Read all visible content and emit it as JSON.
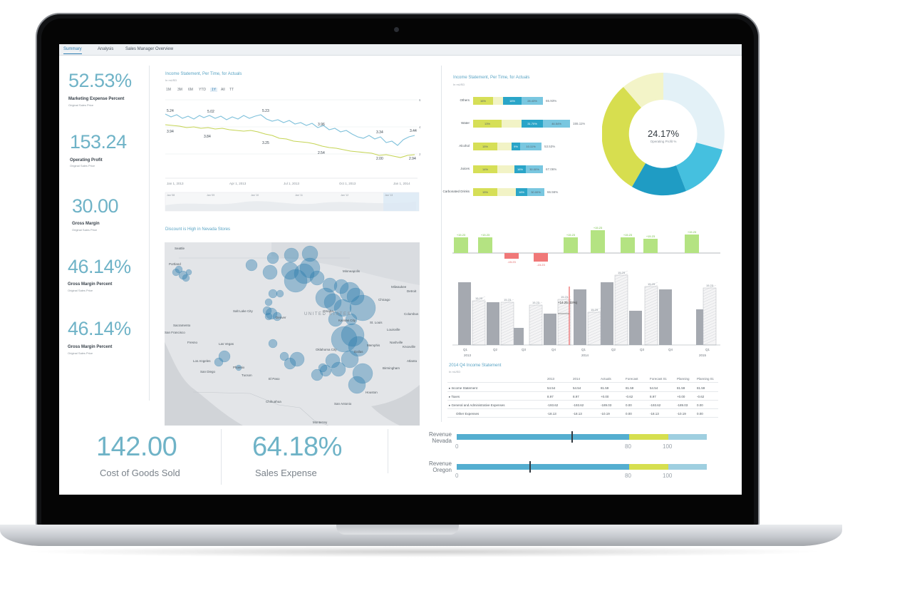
{
  "tabs": [
    "Summary",
    "Analysis",
    "Sales Manager Overview"
  ],
  "kpis": [
    {
      "value": "52.53%",
      "label": "Marketing Expense Percent",
      "sub": "Original Sales Price"
    },
    {
      "value": "153.24",
      "label": "Operating Profit",
      "sub": "Original Sales Price"
    },
    {
      "value": "30.00",
      "label": "Gross Margin",
      "sub": "Original Sales Price"
    },
    {
      "value": "46.14%",
      "label": "Gross Margin Percent",
      "sub": "Original Sales Price"
    },
    {
      "value": "46.14%",
      "label": "Gross Margin Percent",
      "sub": "Original Sales Price"
    }
  ],
  "line_panel": {
    "title": "Income Statement, Per Time, for Actuals",
    "subtitle": "In mUSD",
    "ranges": [
      "1M",
      "3M",
      "6M",
      "YTD",
      "1Y",
      "All",
      "TT"
    ],
    "selected_range": "1Y",
    "x_ticks": [
      "Jan 1, 2013",
      "Apr 1, 2013",
      "Jul 1, 2013",
      "Oct 1, 2013",
      "Jan 1, 2014"
    ],
    "y_ticks": [
      "6",
      "4",
      "2"
    ],
    "navigator_ticks": [
      "Jan '08",
      "Jan '09",
      "Jan '10",
      "Jan '11",
      "Jan '12",
      "Jan '13"
    ],
    "labels": [
      "5.24",
      "5.02",
      "5.23",
      "3.96",
      "3.34",
      "3.44",
      "3.94",
      "3.84",
      "3.25",
      "2.54",
      "2.00",
      "2.94"
    ]
  },
  "map_panel": {
    "title": "Discount is High in Nevada Stores",
    "country": "UNITED STATES",
    "cities": [
      "Seattle",
      "Portland",
      "Sacramento",
      "San Francisco",
      "Fresno",
      "Las Vegas",
      "Los Angeles",
      "San Diego",
      "Phoenix",
      "Tucson",
      "El Paso",
      "Chihuahua",
      "Denver",
      "Salt Lake City",
      "Kansas City",
      "Oklahoma City",
      "Dallas",
      "Houston",
      "San Antonio",
      "Monterrey",
      "Minneapolis",
      "Chicago",
      "Milwaukee",
      "Detroit",
      "Columbus",
      "Louisville",
      "Nashville",
      "Memphis",
      "Atlanta",
      "Birmingham",
      "St. Louis",
      "Omaha",
      "Knoxville"
    ]
  },
  "bar_panel": {
    "title": "Income Statement, Per Time, for Actuals",
    "subtitle": "In mUSD",
    "rows": [
      {
        "name": "Others",
        "segments": [
          "16%",
          "",
          "16%",
          "28.43%"
        ],
        "total": "65.93%"
      },
      {
        "name": "Water",
        "segments": [
          "13%",
          "",
          "31.70%",
          "46.54%"
        ],
        "total": "155.11%"
      },
      {
        "name": "Alcohol",
        "segments": [
          "15%",
          "",
          "9%",
          "10.11%"
        ],
        "total": "53.53%"
      },
      {
        "name": "Juices",
        "segments": [
          "14%",
          "",
          "16%",
          "30.00%"
        ],
        "total": "67.06%"
      },
      {
        "name": "Carbonated Drinks",
        "segments": [
          "15%",
          "",
          "16%",
          "30.00%"
        ],
        "total": "66.56%"
      }
    ]
  },
  "donut": {
    "value": "24.17%",
    "label": "Operating Profit %"
  },
  "variance_panel": {
    "top_labels": [
      "+15.23",
      "+15.23",
      "-15.23",
      "-15.23",
      "+15.23",
      "+15.23",
      "+15.23",
      "+15.23",
      "+15.23"
    ],
    "bar_labels": [
      "15.23",
      "15.23",
      "15.23",
      "15.23",
      "15.23",
      "15.23",
      "15.23",
      "15.23"
    ],
    "callout": "+14.25 (33%)",
    "x_labels": [
      "Q1",
      "Q2",
      "Q3",
      "Q4",
      "Q1",
      "Q2",
      "Q3",
      "Q4",
      "Q1"
    ],
    "years": [
      "2013",
      "2014",
      "2015"
    ]
  },
  "table": {
    "title": "2014 Q4 Income Statement",
    "subtitle": "In mUSD",
    "headers": [
      "2013",
      "2014",
      "Actuals",
      "Forecast",
      "Forecast 01",
      "Planning",
      "Planning 01"
    ],
    "rows": [
      {
        "name": "Income Statement",
        "values": [
          "54.54",
          "54.54",
          "81.59",
          "81.59",
          "54.54",
          "81.59",
          "81.59"
        ]
      },
      {
        "name": "Taxes",
        "values": [
          "8.97",
          "8.97",
          "+0.00",
          "-0.62",
          "8.97",
          "+0.00",
          "-0.62"
        ]
      },
      {
        "name": "General and Administrative Expenses",
        "values": [
          "-193.62",
          "-193.62",
          "-189.03",
          "0.00",
          "-193.62",
          "-189.03",
          "0.00"
        ]
      },
      {
        "name": "Other Expenses",
        "values": [
          "-18.13",
          "-18.13",
          "-10.19",
          "0.00",
          "-18.13",
          "-10.19",
          "0.00"
        ]
      }
    ]
  },
  "bottom_kpis": [
    {
      "value": "142.00",
      "label": "Cost of Goods Sold"
    },
    {
      "value": "64.18%",
      "label": "Sales Expense"
    }
  ],
  "bullets": [
    {
      "label": "Revenue Nevada",
      "marker": 0.46
    },
    {
      "label": "Revenue Oregon",
      "marker": 0.29
    }
  ],
  "bullet_axis": [
    "0",
    "80",
    "100"
  ],
  "colors": {
    "teal": "#6fb3c7",
    "blue": "#54aed0",
    "lime": "#c9dc54",
    "cream": "#f3f3c6",
    "pale": "#9fcfe0",
    "grey": "#a5a9b0",
    "green": "#b4e382",
    "red": "#f07878"
  }
}
